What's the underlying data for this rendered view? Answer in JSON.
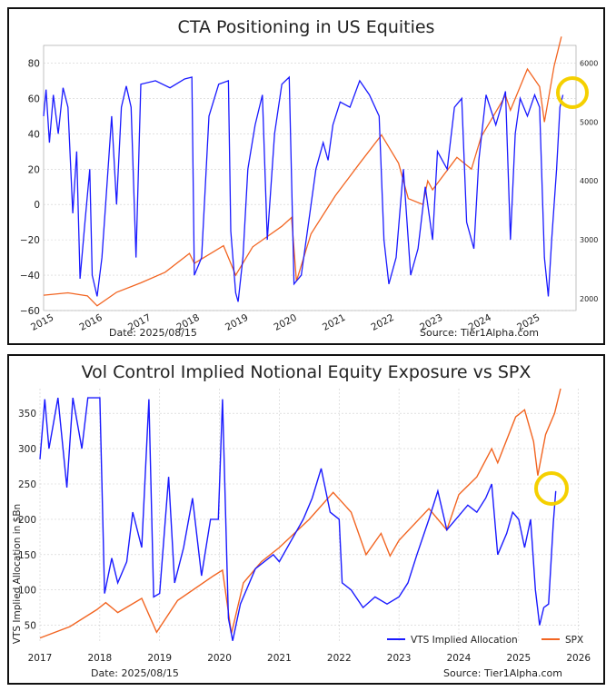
{
  "chart_data": [
    {
      "type": "line",
      "title": "CTA Positioning in US Equities",
      "footer_left": "Date: 2025/08/15",
      "footer_right": "Source: Tier1Alpha.com",
      "x_ticks": [
        "2015",
        "2016",
        "2017",
        "2018",
        "2019",
        "2020",
        "2021",
        "2022",
        "2023",
        "2024",
        "2025"
      ],
      "ylim": [
        -60,
        90
      ],
      "y_ticks": [
        "80",
        "60",
        "40",
        "20",
        "0",
        "−20",
        "−40",
        "−60"
      ],
      "y2lim": [
        1800,
        6300
      ],
      "y2_ticks": [
        "6000",
        "5000",
        "4000",
        "3000",
        "2000"
      ],
      "series": [
        {
          "name": "CTA Positioning",
          "color": "#1a1aff",
          "axis": "left",
          "points": [
            [
              2015.0,
              50
            ],
            [
              2015.05,
              65
            ],
            [
              2015.12,
              35
            ],
            [
              2015.2,
              62
            ],
            [
              2015.3,
              40
            ],
            [
              2015.4,
              66
            ],
            [
              2015.5,
              55
            ],
            [
              2015.6,
              -5
            ],
            [
              2015.68,
              30
            ],
            [
              2015.75,
              -42
            ],
            [
              2015.85,
              -10
            ],
            [
              2015.95,
              20
            ],
            [
              2016.0,
              -40
            ],
            [
              2016.1,
              -52
            ],
            [
              2016.2,
              -30
            ],
            [
              2016.3,
              10
            ],
            [
              2016.4,
              50
            ],
            [
              2016.5,
              0
            ],
            [
              2016.6,
              55
            ],
            [
              2016.7,
              67
            ],
            [
              2016.8,
              55
            ],
            [
              2016.9,
              -30
            ],
            [
              2017.0,
              68
            ],
            [
              2017.3,
              70
            ],
            [
              2017.6,
              66
            ],
            [
              2017.9,
              71
            ],
            [
              2018.05,
              72
            ],
            [
              2018.1,
              -40
            ],
            [
              2018.25,
              -30
            ],
            [
              2018.4,
              50
            ],
            [
              2018.6,
              68
            ],
            [
              2018.8,
              70
            ],
            [
              2018.85,
              -15
            ],
            [
              2018.95,
              -50
            ],
            [
              2019.0,
              -55
            ],
            [
              2019.1,
              -30
            ],
            [
              2019.2,
              20
            ],
            [
              2019.35,
              45
            ],
            [
              2019.5,
              62
            ],
            [
              2019.6,
              -20
            ],
            [
              2019.75,
              40
            ],
            [
              2019.9,
              68
            ],
            [
              2020.05,
              72
            ],
            [
              2020.15,
              -45
            ],
            [
              2020.3,
              -40
            ],
            [
              2020.45,
              -10
            ],
            [
              2020.6,
              20
            ],
            [
              2020.75,
              35
            ],
            [
              2020.85,
              25
            ],
            [
              2020.95,
              45
            ],
            [
              2021.1,
              58
            ],
            [
              2021.3,
              55
            ],
            [
              2021.5,
              70
            ],
            [
              2021.7,
              62
            ],
            [
              2021.9,
              50
            ],
            [
              2022.0,
              -20
            ],
            [
              2022.1,
              -45
            ],
            [
              2022.25,
              -30
            ],
            [
              2022.4,
              20
            ],
            [
              2022.55,
              -40
            ],
            [
              2022.7,
              -25
            ],
            [
              2022.85,
              10
            ],
            [
              2023.0,
              -20
            ],
            [
              2023.1,
              30
            ],
            [
              2023.3,
              20
            ],
            [
              2023.45,
              55
            ],
            [
              2023.6,
              60
            ],
            [
              2023.7,
              -10
            ],
            [
              2023.85,
              -25
            ],
            [
              2023.95,
              25
            ],
            [
              2024.1,
              62
            ],
            [
              2024.3,
              45
            ],
            [
              2024.5,
              64
            ],
            [
              2024.6,
              -20
            ],
            [
              2024.7,
              40
            ],
            [
              2024.8,
              60
            ],
            [
              2024.95,
              50
            ],
            [
              2025.1,
              62
            ],
            [
              2025.2,
              55
            ],
            [
              2025.3,
              -30
            ],
            [
              2025.38,
              -52
            ],
            [
              2025.45,
              -20
            ],
            [
              2025.55,
              20
            ],
            [
              2025.62,
              55
            ],
            [
              2025.68,
              62
            ]
          ]
        },
        {
          "name": "SPX",
          "color": "#f26522",
          "axis": "right",
          "points": [
            [
              2015.0,
              2060
            ],
            [
              2015.5,
              2100
            ],
            [
              2015.9,
              2050
            ],
            [
              2016.1,
              1880
            ],
            [
              2016.5,
              2110
            ],
            [
              2017.0,
              2270
            ],
            [
              2017.5,
              2450
            ],
            [
              2018.0,
              2770
            ],
            [
              2018.1,
              2600
            ],
            [
              2018.7,
              2900
            ],
            [
              2018.95,
              2400
            ],
            [
              2019.3,
              2880
            ],
            [
              2019.9,
              3230
            ],
            [
              2020.1,
              3380
            ],
            [
              2020.2,
              2300
            ],
            [
              2020.5,
              3100
            ],
            [
              2021.0,
              3750
            ],
            [
              2021.5,
              4300
            ],
            [
              2021.95,
              4780
            ],
            [
              2022.3,
              4300
            ],
            [
              2022.5,
              3700
            ],
            [
              2022.8,
              3600
            ],
            [
              2022.9,
              4000
            ],
            [
              2023.0,
              3850
            ],
            [
              2023.5,
              4400
            ],
            [
              2023.8,
              4200
            ],
            [
              2024.0,
              4750
            ],
            [
              2024.5,
              5450
            ],
            [
              2024.6,
              5200
            ],
            [
              2024.95,
              5900
            ],
            [
              2025.2,
              5600
            ],
            [
              2025.3,
              5000
            ],
            [
              2025.5,
              5950
            ],
            [
              2025.65,
              6450
            ]
          ]
        }
      ],
      "annotation": "yellow circle highlighting latest values"
    },
    {
      "type": "line",
      "title": "Vol Control Implied Notional Equity Exposure vs SPX",
      "ylabel": "VTS Implied Allocation in $Bn",
      "footer_left": "Date: 2025/08/15",
      "footer_right": "Source: Tier1Alpha.com",
      "x_ticks": [
        "2017",
        "2018",
        "2019",
        "2020",
        "2021",
        "2022",
        "2023",
        "2024",
        "2025",
        "2026"
      ],
      "ylim": [
        25,
        385
      ],
      "y_ticks": [
        "350",
        "300",
        "250",
        "200",
        "150",
        "100",
        "50"
      ],
      "legend": [
        "VTS Implied Allocation",
        "SPX"
      ],
      "series": [
        {
          "name": "VTS Implied Allocation",
          "color": "#1a1aff",
          "points": [
            [
              2017.0,
              285
            ],
            [
              2017.08,
              370
            ],
            [
              2017.15,
              300
            ],
            [
              2017.3,
              372
            ],
            [
              2017.45,
              245
            ],
            [
              2017.55,
              372
            ],
            [
              2017.7,
              300
            ],
            [
              2017.8,
              372
            ],
            [
              2018.0,
              372
            ],
            [
              2018.08,
              95
            ],
            [
              2018.2,
              145
            ],
            [
              2018.3,
              110
            ],
            [
              2018.45,
              140
            ],
            [
              2018.55,
              210
            ],
            [
              2018.7,
              160
            ],
            [
              2018.82,
              370
            ],
            [
              2018.9,
              90
            ],
            [
              2019.0,
              95
            ],
            [
              2019.15,
              260
            ],
            [
              2019.25,
              110
            ],
            [
              2019.4,
              160
            ],
            [
              2019.55,
              230
            ],
            [
              2019.7,
              120
            ],
            [
              2019.85,
              200
            ],
            [
              2019.98,
              200
            ],
            [
              2020.05,
              370
            ],
            [
              2020.15,
              60
            ],
            [
              2020.22,
              28
            ],
            [
              2020.35,
              80
            ],
            [
              2020.6,
              130
            ],
            [
              2020.9,
              150
            ],
            [
              2021.0,
              140
            ],
            [
              2021.2,
              170
            ],
            [
              2021.4,
              200
            ],
            [
              2021.55,
              230
            ],
            [
              2021.7,
              272
            ],
            [
              2021.85,
              210
            ],
            [
              2022.0,
              200
            ],
            [
              2022.05,
              110
            ],
            [
              2022.2,
              100
            ],
            [
              2022.4,
              75
            ],
            [
              2022.6,
              90
            ],
            [
              2022.8,
              80
            ],
            [
              2023.0,
              90
            ],
            [
              2023.15,
              110
            ],
            [
              2023.3,
              150
            ],
            [
              2023.5,
              200
            ],
            [
              2023.65,
              240
            ],
            [
              2023.8,
              185
            ],
            [
              2023.95,
              200
            ],
            [
              2024.15,
              220
            ],
            [
              2024.3,
              210
            ],
            [
              2024.45,
              230
            ],
            [
              2024.55,
              250
            ],
            [
              2024.65,
              150
            ],
            [
              2024.8,
              180
            ],
            [
              2024.9,
              210
            ],
            [
              2025.0,
              200
            ],
            [
              2025.1,
              160
            ],
            [
              2025.2,
              200
            ],
            [
              2025.28,
              100
            ],
            [
              2025.35,
              50
            ],
            [
              2025.42,
              75
            ],
            [
              2025.5,
              80
            ],
            [
              2025.58,
              195
            ],
            [
              2025.62,
              240
            ]
          ]
        },
        {
          "name": "SPX",
          "color": "#f26522",
          "points": [
            [
              2017.0,
              32
            ],
            [
              2017.5,
              48
            ],
            [
              2017.95,
              72
            ],
            [
              2018.1,
              82
            ],
            [
              2018.3,
              68
            ],
            [
              2018.7,
              88
            ],
            [
              2018.95,
              40
            ],
            [
              2019.3,
              85
            ],
            [
              2019.9,
              120
            ],
            [
              2020.05,
              128
            ],
            [
              2020.2,
              38
            ],
            [
              2020.4,
              110
            ],
            [
              2020.7,
              140
            ],
            [
              2021.0,
              160
            ],
            [
              2021.5,
              200
            ],
            [
              2021.9,
              238
            ],
            [
              2022.2,
              210
            ],
            [
              2022.45,
              150
            ],
            [
              2022.7,
              180
            ],
            [
              2022.85,
              148
            ],
            [
              2023.0,
              170
            ],
            [
              2023.5,
              215
            ],
            [
              2023.8,
              185
            ],
            [
              2024.0,
              235
            ],
            [
              2024.3,
              260
            ],
            [
              2024.55,
              300
            ],
            [
              2024.65,
              280
            ],
            [
              2024.95,
              345
            ],
            [
              2025.1,
              355
            ],
            [
              2025.25,
              310
            ],
            [
              2025.32,
              262
            ],
            [
              2025.45,
              320
            ],
            [
              2025.6,
              350
            ],
            [
              2025.7,
              385
            ]
          ]
        }
      ],
      "annotation": "yellow circle highlighting latest values"
    }
  ]
}
